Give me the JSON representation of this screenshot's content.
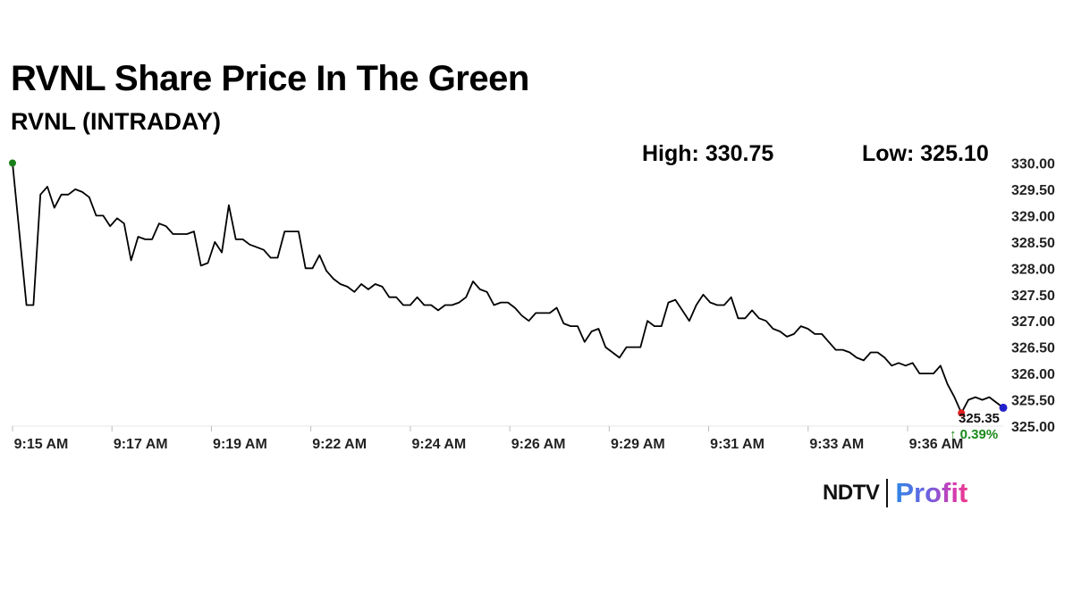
{
  "title": "RVNL Share Price In The Green",
  "subtitle": "RVNL (INTRADAY)",
  "stats": {
    "high_label": "High: 330.75",
    "low_label": "Low: 325.10"
  },
  "colors": {
    "line": "#000000",
    "start_marker": "#1a7f1a",
    "end_marker": "#2222cc",
    "low_marker": "#e02020",
    "change_positive": "#1a8a1a"
  },
  "chart_data": {
    "type": "line",
    "title": "RVNL (INTRADAY)",
    "xlabel": "",
    "ylabel": "",
    "ylim": [
      325,
      330
    ],
    "grid": false,
    "y_ticks": [
      "330.00",
      "329.50",
      "329.00",
      "328.50",
      "328.00",
      "327.50",
      "327.00",
      "326.50",
      "326.00",
      "325.50",
      "325.00"
    ],
    "x_ticks": [
      "9:15 AM",
      "9:17 AM",
      "9:19 AM",
      "9:22 AM",
      "9:24 AM",
      "9:26 AM",
      "9:29 AM",
      "9:31 AM",
      "9:33 AM",
      "9:36 AM"
    ],
    "series": [
      {
        "name": "RVNL",
        "values": [
          330.0,
          328.65,
          327.3,
          327.3,
          329.4,
          329.55,
          329.15,
          329.4,
          329.4,
          329.5,
          329.45,
          329.35,
          329.0,
          329.0,
          328.8,
          328.95,
          328.85,
          328.15,
          328.6,
          328.55,
          328.55,
          328.85,
          328.8,
          328.65,
          328.65,
          328.65,
          328.7,
          328.05,
          328.1,
          328.5,
          328.3,
          329.2,
          328.55,
          328.55,
          328.45,
          328.4,
          328.35,
          328.2,
          328.2,
          328.7,
          328.7,
          328.7,
          328.0,
          328.0,
          328.25,
          327.95,
          327.8,
          327.7,
          327.65,
          327.55,
          327.7,
          327.6,
          327.7,
          327.65,
          327.45,
          327.45,
          327.3,
          327.3,
          327.45,
          327.3,
          327.3,
          327.2,
          327.3,
          327.3,
          327.35,
          327.45,
          327.75,
          327.6,
          327.55,
          327.3,
          327.35,
          327.35,
          327.25,
          327.1,
          327.0,
          327.15,
          327.15,
          327.15,
          327.25,
          326.95,
          326.9,
          326.9,
          326.6,
          326.8,
          326.85,
          326.5,
          326.4,
          326.3,
          326.5,
          326.5,
          326.5,
          327.0,
          326.9,
          326.9,
          327.35,
          327.4,
          327.2,
          327.0,
          327.3,
          327.5,
          327.35,
          327.3,
          327.3,
          327.45,
          327.05,
          327.05,
          327.2,
          327.05,
          327.0,
          326.85,
          326.8,
          326.7,
          326.75,
          326.9,
          326.85,
          326.75,
          326.75,
          326.6,
          326.45,
          326.45,
          326.4,
          326.3,
          326.25,
          326.4,
          326.4,
          326.3,
          326.15,
          326.2,
          326.15,
          326.2,
          326.0,
          326.0,
          326.0,
          326.15,
          325.8,
          325.55,
          325.25,
          325.5,
          325.55,
          325.5,
          325.55,
          325.45,
          325.35
        ]
      }
    ],
    "last_price_label": "325.35",
    "change_label": "↑ 0.39%"
  }
}
